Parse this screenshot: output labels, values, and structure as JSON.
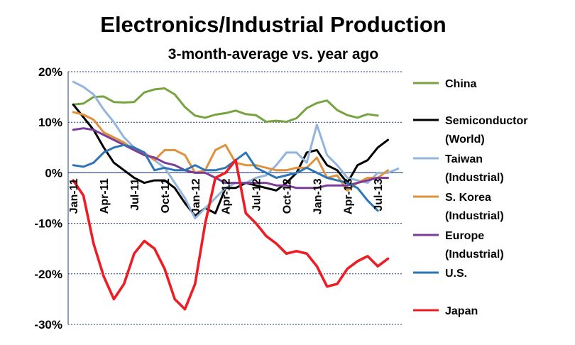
{
  "chart_data": {
    "type": "line",
    "title": "Electronics/Industrial Production",
    "subtitle": "3-month-average vs. year ago",
    "xlabel": "",
    "ylabel": "",
    "ylim": [
      -30,
      20
    ],
    "yticks": [
      20,
      10,
      0,
      -10,
      -20,
      -30
    ],
    "ytick_labels": [
      "20%",
      "10%",
      "0%",
      "-10%",
      "-20%",
      "-30%"
    ],
    "x_tick_labels": [
      {
        "index": 0,
        "label": "Jan-11"
      },
      {
        "index": 3,
        "label": "Apr-11"
      },
      {
        "index": 6,
        "label": "Jul-11"
      },
      {
        "index": 9,
        "label": "Oct-11"
      },
      {
        "index": 12,
        "label": "Jan-12"
      },
      {
        "index": 15,
        "label": "Apr-12"
      },
      {
        "index": 18,
        "label": "Jul-12"
      },
      {
        "index": 21,
        "label": "Oct-12"
      },
      {
        "index": 24,
        "label": "Jan-13"
      },
      {
        "index": 27,
        "label": "Apr-13"
      },
      {
        "index": 30,
        "label": "Jul-13"
      }
    ],
    "num_points": 33,
    "grid": true,
    "legend_position": "right",
    "series": [
      {
        "name": "China",
        "color": "#77a341",
        "values": [
          13.5,
          13.7,
          15.0,
          15.1,
          14.0,
          13.9,
          14.0,
          15.9,
          16.5,
          16.7,
          15.5,
          13.0,
          11.3,
          10.9,
          11.5,
          11.8,
          12.3,
          11.6,
          11.4,
          10.1,
          10.3,
          10.1,
          10.8,
          12.8,
          13.8,
          14.3,
          12.4,
          11.4,
          10.9,
          11.6,
          11.3,
          null,
          null
        ]
      },
      {
        "name": "Semiconductor\n(World)",
        "color": "#000000",
        "values": [
          13.5,
          11.0,
          8.5,
          5.0,
          2.0,
          0.5,
          -1.0,
          -2.0,
          -1.5,
          -1.5,
          -3.0,
          -6.0,
          -8.5,
          -7.0,
          -8.0,
          -3.0,
          -3.0,
          -2.0,
          -2.5,
          -3.0,
          -3.5,
          -2.0,
          0.0,
          4.0,
          4.5,
          1.5,
          0.5,
          -2.0,
          1.5,
          2.5,
          5.0,
          6.5,
          null
        ]
      },
      {
        "name": "Taiwan\n(Industrial)",
        "color": "#93b4dc",
        "values": [
          18.0,
          17.0,
          15.5,
          12.5,
          10.0,
          7.0,
          5.0,
          4.0,
          2.5,
          1.0,
          -2.0,
          -5.0,
          -9.0,
          -7.0,
          -5.0,
          -3.0,
          -2.0,
          -2.0,
          -1.0,
          -0.5,
          1.5,
          4.0,
          4.0,
          2.0,
          9.5,
          3.5,
          1.5,
          -1.0,
          -1.5,
          -2.0,
          0.0,
          0.0,
          0.8
        ]
      },
      {
        "name": "S. Korea\n(Industrial)",
        "color": "#e0913c",
        "values": [
          12.0,
          11.5,
          10.5,
          8.0,
          7.0,
          6.0,
          4.5,
          4.0,
          2.5,
          4.5,
          4.5,
          3.5,
          0.0,
          0.5,
          4.5,
          5.5,
          2.0,
          1.5,
          1.5,
          1.0,
          0.5,
          0.5,
          1.0,
          1.0,
          3.0,
          -1.0,
          -0.5,
          -3.5,
          -2.0,
          -1.0,
          -1.0,
          0.5,
          null
        ]
      },
      {
        "name": "Europe\n(Industrial)",
        "color": "#7b3d98",
        "values": [
          8.5,
          8.8,
          8.5,
          7.5,
          6.5,
          5.5,
          4.5,
          3.5,
          3.0,
          2.0,
          1.5,
          0.5,
          0.0,
          0.0,
          -1.0,
          -2.0,
          -2.0,
          -2.0,
          -2.0,
          -2.0,
          -2.5,
          -2.5,
          -3.0,
          -3.0,
          -3.0,
          -2.5,
          -2.5,
          -2.5,
          -2.0,
          -1.5,
          -1.0,
          -1.0,
          null
        ]
      },
      {
        "name": "U.S.",
        "color": "#2e75b6",
        "values": [
          1.5,
          1.2,
          2.0,
          4.0,
          5.0,
          5.5,
          5.0,
          4.0,
          0.5,
          1.0,
          0.5,
          0.5,
          1.5,
          0.5,
          0.5,
          1.0,
          2.5,
          4.0,
          1.0,
          0.0,
          -1.0,
          -0.5,
          0.0,
          1.0,
          0.0,
          -1.0,
          -1.5,
          -2.0,
          -3.0,
          -5.5,
          -7.5,
          null,
          null
        ]
      },
      {
        "name": "Japan",
        "color": "#ee1c25",
        "values": [
          -1.5,
          -4.5,
          -14.0,
          -20.5,
          -25.0,
          -22.0,
          -16.0,
          -13.5,
          -15.0,
          -19.0,
          -25.0,
          -27.0,
          -22.0,
          -10.0,
          -1.0,
          0.0,
          2.5,
          -8.0,
          -10.0,
          -12.5,
          -14.0,
          -16.0,
          -15.5,
          -16.0,
          -18.5,
          -22.5,
          -22.0,
          -19.0,
          -17.5,
          -16.5,
          -18.5,
          -17.0,
          null
        ]
      }
    ]
  }
}
